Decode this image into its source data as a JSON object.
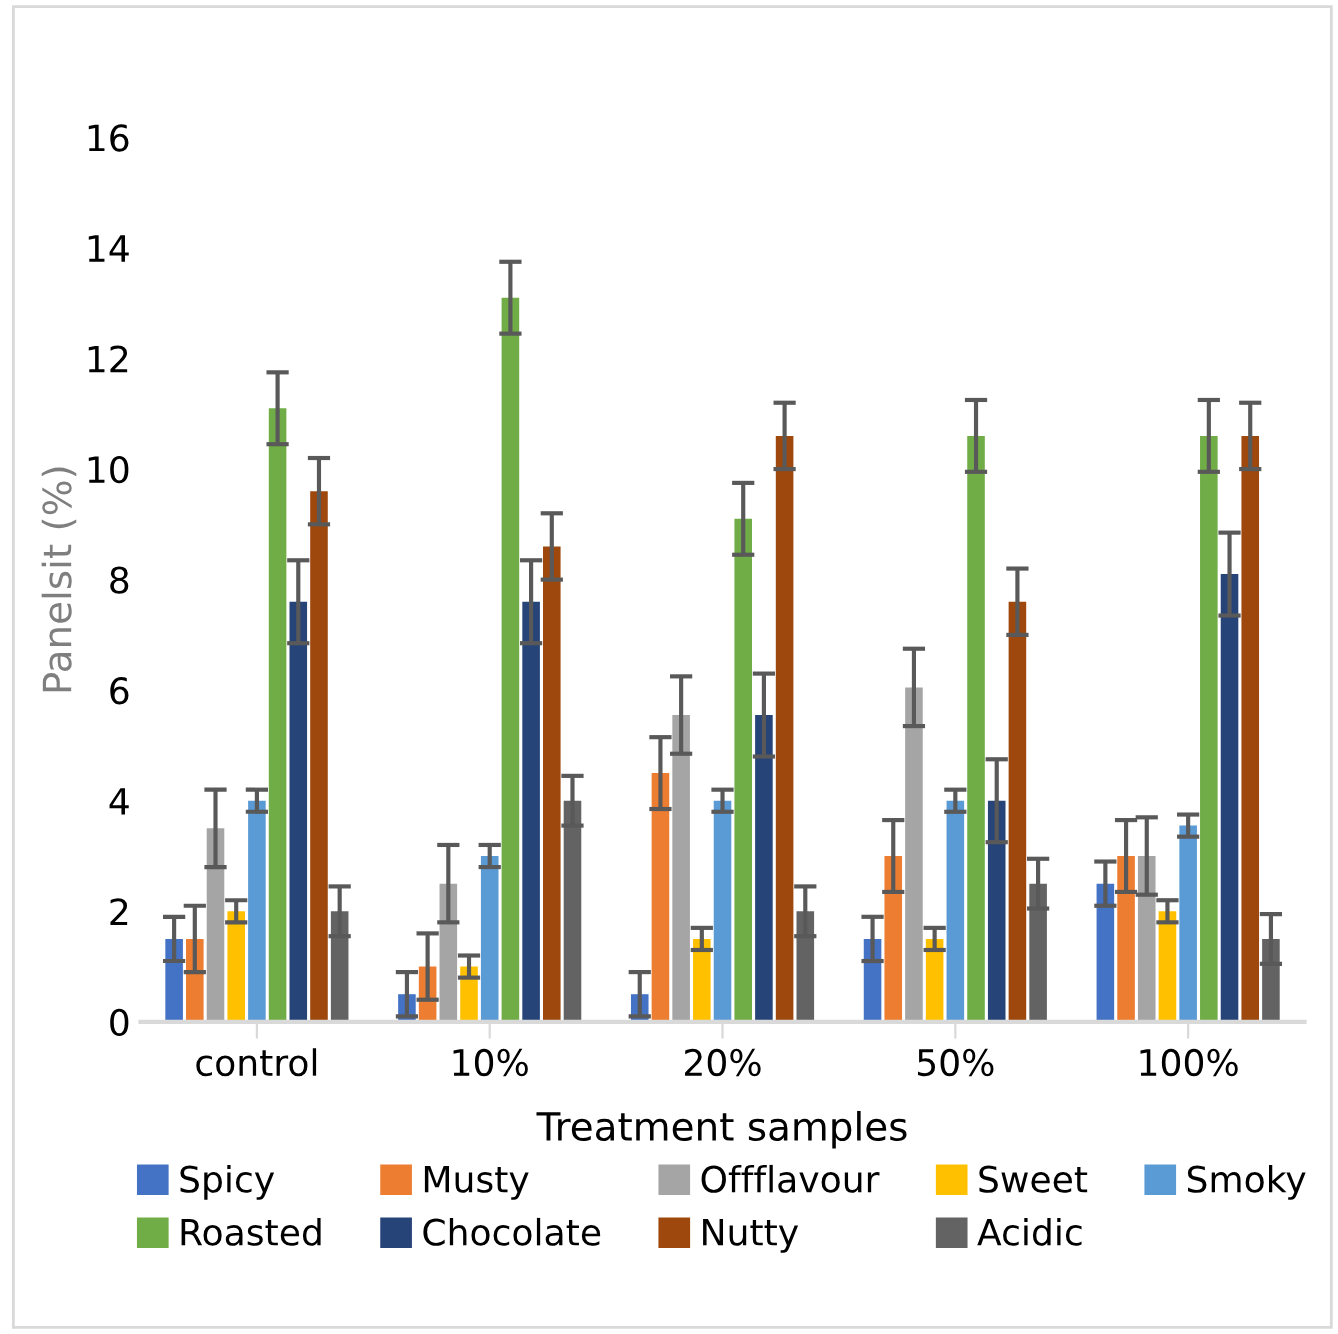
{
  "chart_data": {
    "type": "bar",
    "xlabel": "Treatment samples",
    "ylabel": "Panelsit (%)",
    "categories": [
      "control",
      "10%",
      "20%",
      "50%",
      "100%"
    ],
    "ylim": [
      0,
      16
    ],
    "yticks": [
      0,
      2,
      4,
      6,
      8,
      10,
      12,
      14,
      16
    ],
    "grid": false,
    "legend": "bottom",
    "series": [
      {
        "name": "Spicy",
        "color": "#4472c4",
        "values": [
          1.5,
          0.5,
          0.5,
          1.5,
          2.5
        ],
        "errors": [
          0.4,
          0.4,
          0.4,
          0.4,
          0.4
        ]
      },
      {
        "name": "Musty",
        "color": "#ed7d31",
        "values": [
          1.5,
          1.0,
          4.5,
          3.0,
          3.0
        ],
        "errors": [
          0.6,
          0.6,
          0.65,
          0.65,
          0.65
        ]
      },
      {
        "name": "Offflavour",
        "color": "#a5a5a5",
        "values": [
          3.5,
          2.5,
          5.55,
          6.05,
          3.0
        ],
        "errors": [
          0.7,
          0.7,
          0.7,
          0.7,
          0.7
        ]
      },
      {
        "name": "Sweet",
        "color": "#ffc000",
        "values": [
          2.0,
          1.0,
          1.5,
          1.5,
          2.0
        ],
        "errors": [
          0.2,
          0.2,
          0.2,
          0.2,
          0.2
        ]
      },
      {
        "name": "Smoky",
        "color": "#5b9bd5",
        "values": [
          4.0,
          3.0,
          4.0,
          4.0,
          3.55
        ],
        "errors": [
          0.2,
          0.2,
          0.2,
          0.2,
          0.2
        ]
      },
      {
        "name": "Roasted",
        "color": "#70ad47",
        "values": [
          11.1,
          13.1,
          9.1,
          10.6,
          10.6
        ],
        "errors": [
          0.65,
          0.65,
          0.65,
          0.65,
          0.65
        ]
      },
      {
        "name": "Chocolate",
        "color": "#264478",
        "values": [
          7.6,
          7.6,
          5.55,
          4.0,
          8.1
        ],
        "errors": [
          0.75,
          0.75,
          0.75,
          0.75,
          0.75
        ]
      },
      {
        "name": "Nutty",
        "color": "#9e480e",
        "values": [
          9.6,
          8.6,
          10.6,
          7.6,
          10.6
        ],
        "errors": [
          0.6,
          0.6,
          0.6,
          0.6,
          0.6
        ]
      },
      {
        "name": "Acidic",
        "color": "#636363",
        "values": [
          2.0,
          4.0,
          2.0,
          2.5,
          1.5
        ],
        "errors": [
          0.45,
          0.45,
          0.45,
          0.45,
          0.45
        ]
      }
    ]
  }
}
